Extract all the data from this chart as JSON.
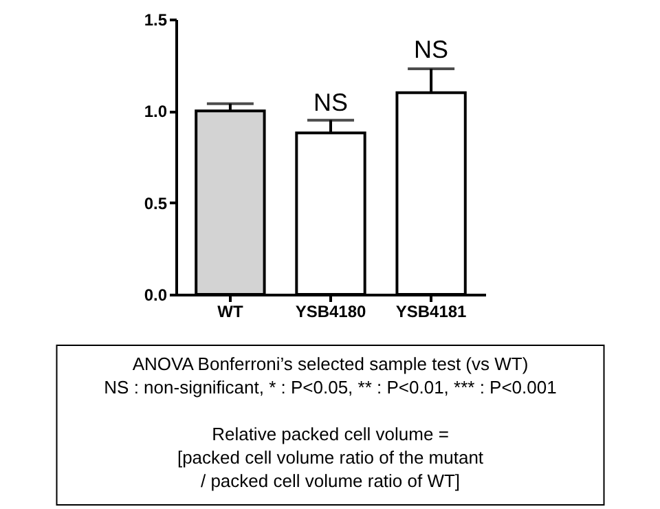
{
  "chart_data": {
    "type": "bar",
    "categories": [
      "WT",
      "YSB4180",
      "YSB4181"
    ],
    "values": [
      1.0,
      0.88,
      1.1
    ],
    "colors": [
      "#d3d3d3",
      "#ffffff",
      "#ffffff"
    ],
    "errors": [
      [
        1.0,
        1.04
      ],
      [
        0.88,
        0.95
      ],
      [
        1.1,
        1.23
      ]
    ],
    "ylim": [
      0,
      1.5
    ],
    "yticks": [
      {
        "value": 0,
        "label": "0.0"
      },
      {
        "value": 0.5,
        "label": "0.5"
      },
      {
        "value": 1,
        "label": "1.0"
      },
      {
        "value": 1.5,
        "label": "1.5"
      }
    ],
    "grid": false,
    "annotations": [
      {
        "text": "NS",
        "x": "YSB4180",
        "y": 0.97
      },
      {
        "text": "NS",
        "x": "YSB4181",
        "y": 1.26
      },
      "ANOVA Bonferroni’s selected sample test (vs WT)\nNS : non-significant, * : P<0.05, ** : P<0.01, *** : P<0.001",
      "Relative packed cell volume =\n[packed cell volume ratio of the mutant\n/ packed cell volume ratio of WT]"
    ]
  }
}
